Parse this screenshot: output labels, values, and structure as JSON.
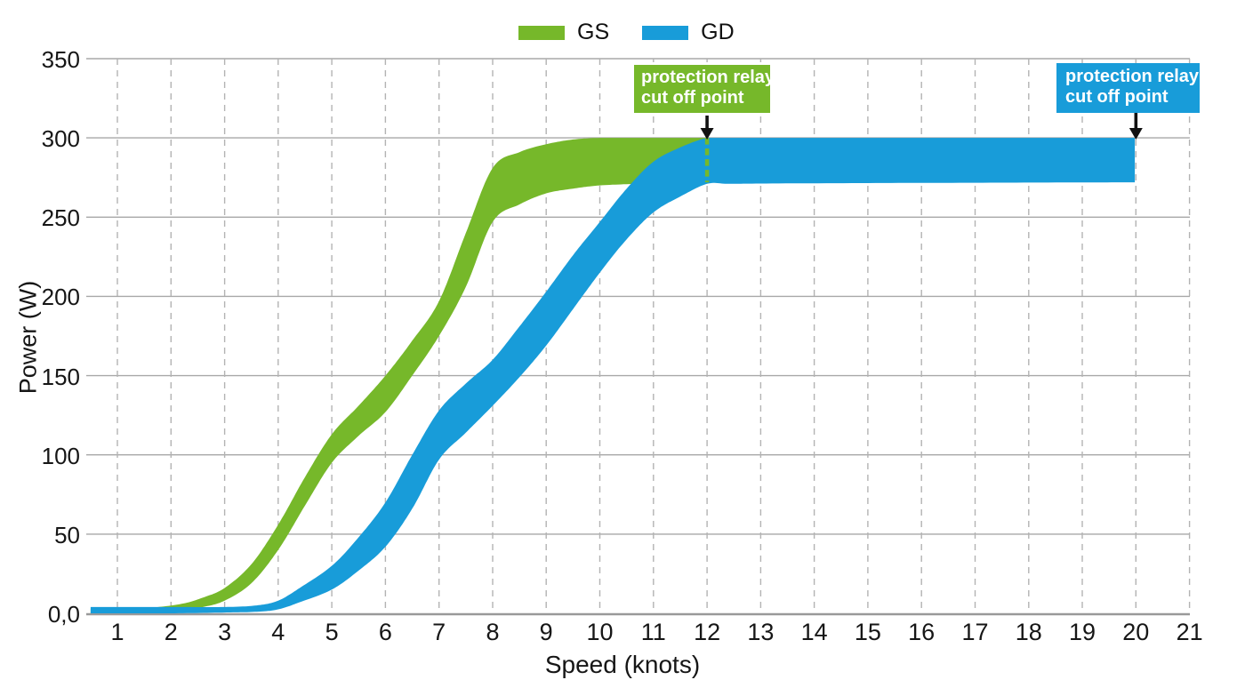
{
  "chart_data": {
    "type": "area",
    "title": "",
    "xlabel": "Speed (knots)",
    "ylabel": "Power (W)",
    "x_ticks": [
      1,
      2,
      3,
      4,
      5,
      6,
      7,
      8,
      9,
      10,
      11,
      12,
      13,
      14,
      15,
      16,
      17,
      18,
      19,
      20,
      21
    ],
    "y_tick_values": [
      0,
      50,
      100,
      150,
      200,
      250,
      300,
      350
    ],
    "y_tick_labels": [
      "0,0",
      "50",
      "100",
      "150",
      "200",
      "250",
      "300",
      "350"
    ],
    "xlim": [
      0.5,
      21
    ],
    "ylim": [
      0,
      350
    ],
    "grid": true,
    "legend": {
      "position": "top-center",
      "entries": [
        {
          "label": "GS",
          "color": "#76B82A"
        },
        {
          "label": "GD",
          "color": "#189CD9"
        }
      ]
    },
    "series": [
      {
        "name": "GS",
        "color": "#76B82A",
        "type": "band",
        "cutoff_x": 12,
        "points_format": "[speed_knots, power_low_W, power_high_W]",
        "points": [
          [
            0.5,
            0,
            3
          ],
          [
            1,
            0,
            3
          ],
          [
            1.6,
            0.5,
            3.5
          ],
          [
            2.2,
            2,
            6
          ],
          [
            2.6,
            4,
            10
          ],
          [
            3,
            8,
            16
          ],
          [
            3.5,
            19,
            31
          ],
          [
            4,
            40,
            56
          ],
          [
            4.5,
            68,
            86
          ],
          [
            5,
            95,
            113
          ],
          [
            5.5,
            112,
            131
          ],
          [
            6,
            127,
            150
          ],
          [
            6.5,
            150,
            172
          ],
          [
            7,
            175,
            197
          ],
          [
            7.5,
            206,
            240
          ],
          [
            8,
            247,
            281
          ],
          [
            8.5,
            258,
            291
          ],
          [
            9,
            265,
            296
          ],
          [
            9.5,
            268,
            299
          ],
          [
            10,
            270,
            300
          ],
          [
            10.7,
            271,
            300
          ],
          [
            11.4,
            271.5,
            300
          ],
          [
            12,
            272,
            300
          ]
        ]
      },
      {
        "name": "GD",
        "color": "#189CD9",
        "type": "band",
        "cutoff_x": 20,
        "points_format": "[speed_knots, power_low_W, power_high_W]",
        "points": [
          [
            0.5,
            0,
            4
          ],
          [
            1,
            0,
            4
          ],
          [
            2,
            0,
            4
          ],
          [
            3,
            0.5,
            4
          ],
          [
            3.6,
            1,
            5
          ],
          [
            4,
            2.5,
            8
          ],
          [
            4.4,
            7,
            16
          ],
          [
            5,
            15,
            30
          ],
          [
            5.5,
            27,
            48
          ],
          [
            6,
            42,
            70
          ],
          [
            6.5,
            66,
            100
          ],
          [
            7,
            97,
            128
          ],
          [
            7.5,
            114,
            145
          ],
          [
            8,
            131,
            160
          ],
          [
            8.5,
            149,
            181
          ],
          [
            9,
            169,
            203
          ],
          [
            9.5,
            192,
            226
          ],
          [
            10,
            215,
            247
          ],
          [
            10.5,
            236,
            268
          ],
          [
            11,
            253,
            285
          ],
          [
            11.5,
            263,
            294
          ],
          [
            12,
            271,
            300
          ],
          [
            12.4,
            271,
            300
          ],
          [
            13,
            271.2,
            300
          ],
          [
            15,
            271.5,
            300
          ],
          [
            17,
            271.7,
            300
          ],
          [
            19,
            271.9,
            300
          ],
          [
            19.98,
            272,
            300
          ]
        ]
      }
    ],
    "cutoff_line": {
      "x": 12,
      "from_w": 300,
      "to_w": 272,
      "style": "dashed",
      "color": "#76B82A"
    },
    "annotations": [
      {
        "lines": [
          "protection relay",
          "cut off point"
        ],
        "color": "#76B82A",
        "border_color": "#3E3E3D",
        "text_color": "#ffffff",
        "arrow_x": 12
      },
      {
        "lines": [
          "protection relay",
          "cut off point"
        ],
        "color": "#189CD9",
        "border_color": null,
        "text_color": "#ffffff",
        "arrow_x": 20
      }
    ],
    "colors": {
      "gridline": "#A8A8A8",
      "gridline_dashed": "#B3B3B3",
      "axis_line": "#999999",
      "arrow": "#111111",
      "tick_text": "#161616"
    }
  }
}
